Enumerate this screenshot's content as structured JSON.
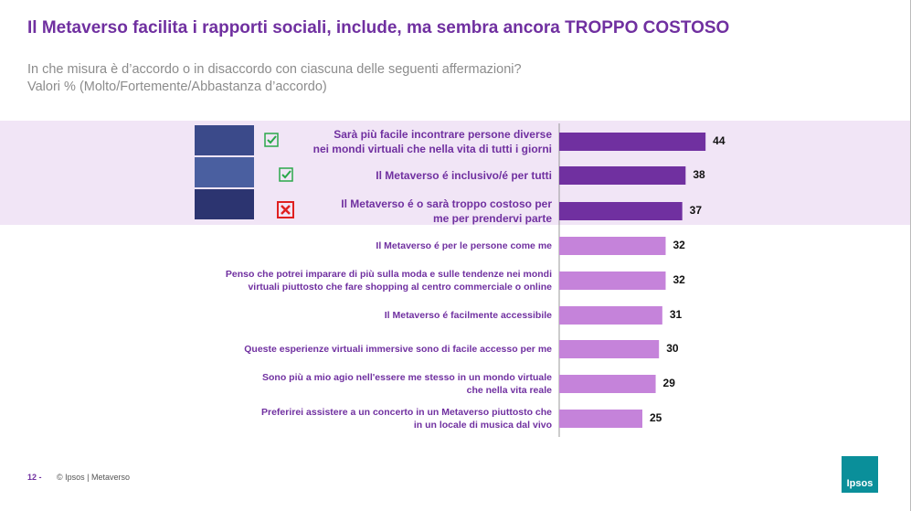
{
  "header": {
    "title": "Il Metaverso facilita i rapporti sociali, include, ma sembra ancora TROPPO COSTOSO",
    "subtitle_lines": [
      "In che misura è d’accordo o in disaccordo con ciascuna delle seguenti affermazioni?",
      "Valori % (Molto/Fortemente/Abbastanza d’accordo)"
    ]
  },
  "chart_data": {
    "type": "bar",
    "orientation": "horizontal",
    "categories": [
      "Sarà più facile incontrare persone diverse\nnei mondi virtuali che nella vita di tutti i giorni",
      "Il Metaverso é inclusivo/é per tutti",
      "Il Metaverso é o sarà troppo costoso per\nme per prendervi parte",
      "Il Metaverso é per le persone come me",
      "Penso che potrei imparare di più sulla moda e sulle tendenze nei mondi\nvirtuali piuttosto che fare shopping al centro commerciale o online",
      "Il Metaverso é facilmente accessibile",
      "Queste esperienze virtuali immersive sono di facile accesso per me",
      "Sono più a mio agio nell'essere me stesso in un mondo virtuale\nche nella vita reale",
      "Preferirei assistere a un concerto in un Metaverso piuttosto che\nin un locale di musica dal vivo"
    ],
    "values": [
      44,
      38,
      37,
      32,
      32,
      31,
      30,
      29,
      25
    ],
    "colors": [
      "#7030a0",
      "#7030a0",
      "#7030a0",
      "#c583da",
      "#c583da",
      "#c583da",
      "#c583da",
      "#c583da",
      "#c583da"
    ],
    "xlim": [
      0,
      100
    ]
  },
  "footer": {
    "page": "12 -",
    "source": "© Ipsos | Metaverso",
    "logo": "Ipsos"
  }
}
